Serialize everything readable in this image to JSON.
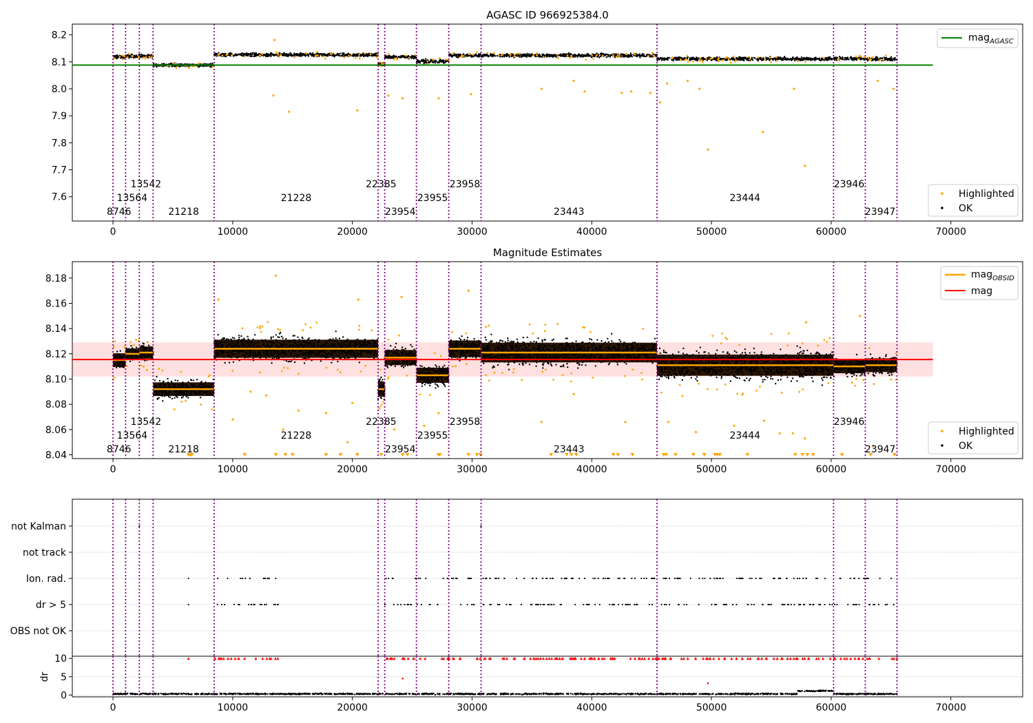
{
  "chart_data": [
    {
      "type": "scatter",
      "title": "AGASC ID 966925384.0",
      "xlabel": "",
      "ylabel": "",
      "xlim": [
        -3400,
        76000
      ],
      "ylim": [
        7.51,
        8.24
      ],
      "x_ticks": [
        0,
        10000,
        20000,
        30000,
        40000,
        50000,
        60000,
        70000
      ],
      "y_ticks": [
        7.6,
        7.7,
        7.8,
        7.9,
        8.0,
        8.1,
        8.2
      ],
      "legend_upper": {
        "position": "top-right",
        "entries": [
          {
            "label": "mag",
            "sub": "AGASC",
            "color": "#008000"
          }
        ]
      },
      "legend_lower": {
        "position": "bottom-right",
        "entries": [
          {
            "label": "Highlighted",
            "color": "#ffa500"
          },
          {
            "label": "OK",
            "color": "#000000"
          }
        ]
      },
      "reference_line": {
        "name": "mag_AGASC",
        "value": 8.088,
        "x": [
          -3400,
          68500
        ],
        "color": "#008000"
      },
      "obsid_boundaries": [
        0,
        1050,
        2200,
        3350,
        8450,
        22150,
        22700,
        25350,
        28050,
        30750,
        45450,
        60200,
        62850,
        65500
      ],
      "obsid_labels": [
        {
          "text": "8746",
          "x": 500,
          "row": 0
        },
        {
          "text": "13564",
          "x": 1600,
          "row": 1
        },
        {
          "text": "13542",
          "x": 2750,
          "row": 2
        },
        {
          "text": "21218",
          "x": 5900,
          "row": 0
        },
        {
          "text": "21228",
          "x": 15300,
          "row": 1
        },
        {
          "text": "22385",
          "x": 22400,
          "row": 2
        },
        {
          "text": "23954",
          "x": 24000,
          "row": 0
        },
        {
          "text": "23955",
          "x": 26700,
          "row": 1
        },
        {
          "text": "23958",
          "x": 29400,
          "row": 2
        },
        {
          "text": "23443",
          "x": 38100,
          "row": 0
        },
        {
          "text": "23444",
          "x": 52800,
          "row": 1
        },
        {
          "text": "23946",
          "x": 61500,
          "row": 2
        },
        {
          "text": "23947",
          "x": 64100,
          "row": 0
        }
      ],
      "segments": [
        {
          "x": [
            0,
            1050
          ],
          "y": 8.118
        },
        {
          "x": [
            1050,
            2200
          ],
          "y": 8.121
        },
        {
          "x": [
            2200,
            3350
          ],
          "y": 8.122
        },
        {
          "x": [
            3350,
            8450
          ],
          "y": 8.088
        },
        {
          "x": [
            8450,
            22150
          ],
          "y": 8.126
        },
        {
          "x": [
            22150,
            22700
          ],
          "y": 8.092
        },
        {
          "x": [
            22700,
            25350
          ],
          "y": 8.118
        },
        {
          "x": [
            25350,
            28050
          ],
          "y": 8.102
        },
        {
          "x": [
            28050,
            30750
          ],
          "y": 8.124
        },
        {
          "x": [
            30750,
            45450
          ],
          "y": 8.124
        },
        {
          "x": [
            45450,
            60200
          ],
          "y": 8.111
        },
        {
          "x": [
            60200,
            62850
          ],
          "y": 8.112
        },
        {
          "x": [
            62850,
            65500
          ],
          "y": 8.11
        }
      ],
      "highlighted_outliers": [
        [
          13500,
          8.181
        ],
        [
          13400,
          7.975
        ],
        [
          14700,
          7.915
        ],
        [
          20400,
          7.92
        ],
        [
          23000,
          7.975
        ],
        [
          24200,
          7.965
        ],
        [
          27200,
          7.965
        ],
        [
          29900,
          7.98
        ],
        [
          35800,
          8.0
        ],
        [
          38500,
          8.03
        ],
        [
          39400,
          7.99
        ],
        [
          42500,
          7.985
        ],
        [
          43300,
          7.99
        ],
        [
          44900,
          7.985
        ],
        [
          45700,
          7.95
        ],
        [
          46300,
          8.02
        ],
        [
          48000,
          8.03
        ],
        [
          49000,
          8.0
        ],
        [
          49700,
          7.775
        ],
        [
          54300,
          7.84
        ],
        [
          56900,
          8.0
        ],
        [
          57800,
          7.715
        ],
        [
          63900,
          8.03
        ],
        [
          65200,
          8.0
        ]
      ]
    },
    {
      "type": "scatter",
      "title": "Magnitude Estimates",
      "xlabel": "",
      "ylabel": "",
      "xlim": [
        -3400,
        76000
      ],
      "ylim": [
        8.037,
        8.193
      ],
      "x_ticks": [
        0,
        10000,
        20000,
        30000,
        40000,
        50000,
        60000,
        70000
      ],
      "y_ticks": [
        8.04,
        8.06,
        8.08,
        8.1,
        8.12,
        8.14,
        8.16,
        8.18
      ],
      "legend_upper": {
        "position": "top-right",
        "entries": [
          {
            "label": "mag",
            "sub": "OBSID",
            "color": "#ffa500"
          },
          {
            "label": "mag",
            "sub": "",
            "color": "#ff0000"
          }
        ]
      },
      "legend_lower": {
        "position": "bottom-right",
        "entries": [
          {
            "label": "Highlighted",
            "color": "#ffa500"
          },
          {
            "label": "OK",
            "color": "#000000"
          }
        ]
      },
      "mag_line": {
        "value": 8.1155,
        "band": [
          8.102,
          8.129
        ],
        "x": [
          -3400,
          68500
        ],
        "color": "#ff0000"
      },
      "segments": [
        {
          "x": [
            0,
            1050
          ],
          "y": 8.115,
          "spread": 0.009
        },
        {
          "x": [
            1050,
            2200
          ],
          "y": 8.12,
          "spread": 0.007
        },
        {
          "x": [
            2200,
            3350
          ],
          "y": 8.121,
          "spread": 0.008
        },
        {
          "x": [
            3350,
            8450
          ],
          "y": 8.092,
          "spread": 0.009
        },
        {
          "x": [
            8450,
            22150
          ],
          "y": 8.124,
          "spread": 0.012
        },
        {
          "x": [
            22150,
            22700
          ],
          "y": 8.092,
          "spread": 0.01
        },
        {
          "x": [
            22700,
            25350
          ],
          "y": 8.117,
          "spread": 0.01
        },
        {
          "x": [
            25350,
            28050
          ],
          "y": 8.103,
          "spread": 0.01
        },
        {
          "x": [
            28050,
            30750
          ],
          "y": 8.124,
          "spread": 0.011
        },
        {
          "x": [
            30750,
            45450
          ],
          "y": 8.121,
          "spread": 0.013
        },
        {
          "x": [
            45450,
            60200
          ],
          "y": 8.111,
          "spread": 0.014
        },
        {
          "x": [
            60200,
            62850
          ],
          "y": 8.11,
          "spread": 0.009
        },
        {
          "x": [
            62850,
            65500
          ],
          "y": 8.111,
          "spread": 0.009
        }
      ],
      "highlighted_outliers": [
        [
          13600,
          8.182
        ],
        [
          20500,
          8.163
        ],
        [
          29700,
          8.17
        ],
        [
          24100,
          8.165
        ],
        [
          10000,
          8.068
        ],
        [
          11500,
          8.09
        ],
        [
          12800,
          8.087
        ],
        [
          15500,
          8.075
        ],
        [
          17800,
          8.073
        ],
        [
          19600,
          8.05
        ],
        [
          20000,
          8.081
        ],
        [
          14200,
          8.06
        ],
        [
          23500,
          8.06
        ],
        [
          26000,
          8.063
        ],
        [
          27200,
          8.073
        ],
        [
          35800,
          8.066
        ],
        [
          38500,
          8.088
        ],
        [
          42800,
          8.066
        ],
        [
          46400,
          8.066
        ],
        [
          48700,
          8.058
        ],
        [
          51900,
          8.063
        ],
        [
          54400,
          8.067
        ],
        [
          55700,
          8.057
        ],
        [
          56800,
          8.057
        ],
        [
          57800,
          8.053
        ],
        [
          63500,
          8.047
        ],
        [
          8800,
          8.163
        ],
        [
          57900,
          8.145
        ],
        [
          62400,
          8.15
        ]
      ],
      "clipped_markers_x": [
        6300,
        6400,
        6500,
        6600,
        11000,
        13600,
        14400,
        15000,
        17800,
        19000,
        20400,
        22400,
        24200,
        24600,
        27200,
        27300,
        29700,
        30400,
        30700,
        36600,
        37900,
        38300,
        38700,
        41800,
        42200,
        43400,
        46000,
        46200,
        47000,
        48500,
        49400,
        50300,
        50500,
        50700,
        53000,
        57000,
        57600,
        58000,
        58500,
        60900,
        63300,
        65300
      ]
    },
    {
      "type": "scatter",
      "title": "",
      "xlabel": "",
      "ylabel": "",
      "xlim": [
        -3400,
        76000
      ],
      "x_ticks": [
        0,
        10000,
        20000,
        30000,
        40000,
        50000,
        60000,
        70000
      ],
      "categories": [
        "not Kalman",
        "not track",
        "Ion. rad.",
        "dr > 5",
        "OBS not OK"
      ],
      "flag_ranges": {
        "Ion. rad.": [
          [
            6300,
            6300
          ],
          [
            8450,
            13800
          ],
          [
            22600,
            65500
          ]
        ],
        "dr > 5": [
          [
            6300,
            6300
          ],
          [
            8450,
            13800
          ],
          [
            22600,
            65500
          ]
        ],
        "not Kalman": [
          [
            2200,
            2200
          ],
          [
            30750,
            30750
          ]
        ]
      }
    },
    {
      "type": "scatter",
      "title": "",
      "xlabel": "",
      "ylabel": "dr",
      "xlim": [
        -3400,
        76000
      ],
      "ylim": [
        -0.5,
        10.6
      ],
      "x_ticks": [
        0,
        10000,
        20000,
        30000,
        40000,
        50000,
        60000,
        70000
      ],
      "y_ticks": [
        0,
        5,
        10
      ],
      "clipped_ranges": [
        [
          6300,
          6300
        ],
        [
          8450,
          13800
        ],
        [
          22600,
          65500
        ]
      ],
      "baseline_level": 0.3,
      "bump": {
        "x": [
          57200,
          60200
        ],
        "y": 1.1
      },
      "outliers": [
        [
          24200,
          4.5
        ],
        [
          49700,
          3.2
        ]
      ]
    }
  ]
}
